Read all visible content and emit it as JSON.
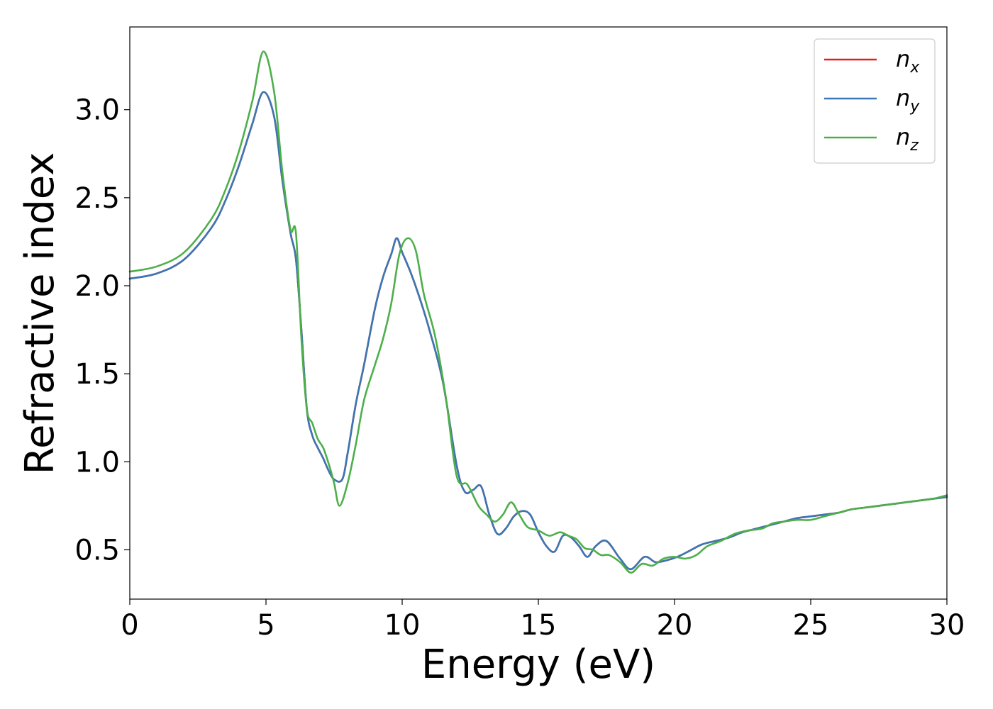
{
  "chart_data": {
    "type": "line",
    "title": "",
    "xlabel": "Energy (eV)",
    "ylabel": "Refractive index",
    "xlim": [
      0,
      30
    ],
    "ylim": [
      0.22,
      3.47
    ],
    "xticks": [
      0,
      5,
      10,
      15,
      20,
      25,
      30
    ],
    "xtick_labels": [
      "0",
      "5",
      "10",
      "15",
      "20",
      "25",
      "30"
    ],
    "yticks": [
      0.5,
      1.0,
      1.5,
      2.0,
      2.5,
      3.0
    ],
    "ytick_labels": [
      "0.5",
      "1.0",
      "1.5",
      "2.0",
      "2.5",
      "3.0"
    ],
    "grid": false,
    "legend_position": "top-right",
    "series": [
      {
        "name": "n_x",
        "label_main": "n",
        "label_sub": "x",
        "color": "#e41a1c",
        "x": [
          0,
          1,
          2,
          3,
          3.5,
          4,
          4.5,
          4.9,
          5.3,
          5.6,
          5.9,
          6.1,
          6.3,
          6.5,
          6.7,
          6.9,
          7.1,
          7.3,
          7.5,
          7.8,
          8.0,
          8.3,
          8.6,
          9.0,
          9.3,
          9.6,
          9.8,
          10.0,
          10.3,
          10.6,
          11.0,
          11.5,
          12.0,
          12.3,
          12.6,
          12.9,
          13.2,
          13.5,
          13.8,
          14.1,
          14.4,
          14.7,
          15.0,
          15.3,
          15.6,
          15.9,
          16.2,
          16.5,
          16.8,
          17.1,
          17.5,
          18.0,
          18.4,
          18.9,
          19.3,
          19.7,
          20.1,
          20.5,
          21.0,
          21.5,
          22.0,
          22.5,
          23.0,
          23.5,
          24.0,
          24.5,
          25.0,
          25.5,
          26.0,
          26.5,
          27.0,
          27.5,
          28.0,
          28.5,
          29.0,
          29.5,
          30.0
        ],
        "y": [
          2.04,
          2.07,
          2.15,
          2.33,
          2.48,
          2.68,
          2.92,
          3.1,
          2.96,
          2.6,
          2.3,
          2.15,
          1.75,
          1.3,
          1.15,
          1.08,
          1.02,
          0.95,
          0.9,
          0.9,
          1.05,
          1.33,
          1.55,
          1.87,
          2.05,
          2.18,
          2.27,
          2.19,
          2.08,
          1.95,
          1.75,
          1.45,
          0.98,
          0.83,
          0.84,
          0.86,
          0.7,
          0.59,
          0.62,
          0.69,
          0.72,
          0.7,
          0.6,
          0.52,
          0.49,
          0.58,
          0.57,
          0.52,
          0.46,
          0.52,
          0.55,
          0.45,
          0.39,
          0.46,
          0.43,
          0.44,
          0.46,
          0.49,
          0.53,
          0.55,
          0.57,
          0.6,
          0.62,
          0.64,
          0.66,
          0.68,
          0.69,
          0.7,
          0.71,
          0.73,
          0.74,
          0.75,
          0.76,
          0.77,
          0.78,
          0.79,
          0.8
        ]
      },
      {
        "name": "n_y",
        "label_main": "n",
        "label_sub": "y",
        "color": "#3a77b4",
        "x": [
          0,
          1,
          2,
          3,
          3.5,
          4,
          4.5,
          4.9,
          5.3,
          5.6,
          5.9,
          6.1,
          6.3,
          6.5,
          6.7,
          6.9,
          7.1,
          7.3,
          7.5,
          7.8,
          8.0,
          8.3,
          8.6,
          9.0,
          9.3,
          9.6,
          9.8,
          10.0,
          10.3,
          10.6,
          11.0,
          11.5,
          12.0,
          12.3,
          12.6,
          12.9,
          13.2,
          13.5,
          13.8,
          14.1,
          14.4,
          14.7,
          15.0,
          15.3,
          15.6,
          15.9,
          16.2,
          16.5,
          16.8,
          17.1,
          17.5,
          18.0,
          18.4,
          18.9,
          19.3,
          19.7,
          20.1,
          20.5,
          21.0,
          21.5,
          22.0,
          22.5,
          23.0,
          23.5,
          24.0,
          24.5,
          25.0,
          25.5,
          26.0,
          26.5,
          27.0,
          27.5,
          28.0,
          28.5,
          29.0,
          29.5,
          30.0
        ],
        "y": [
          2.04,
          2.07,
          2.15,
          2.33,
          2.48,
          2.68,
          2.92,
          3.1,
          2.96,
          2.6,
          2.3,
          2.15,
          1.75,
          1.3,
          1.15,
          1.08,
          1.02,
          0.95,
          0.9,
          0.9,
          1.05,
          1.33,
          1.55,
          1.87,
          2.05,
          2.18,
          2.27,
          2.19,
          2.08,
          1.95,
          1.75,
          1.45,
          0.98,
          0.83,
          0.84,
          0.86,
          0.7,
          0.59,
          0.62,
          0.69,
          0.72,
          0.7,
          0.6,
          0.52,
          0.49,
          0.58,
          0.57,
          0.52,
          0.46,
          0.52,
          0.55,
          0.45,
          0.39,
          0.46,
          0.43,
          0.44,
          0.46,
          0.49,
          0.53,
          0.55,
          0.57,
          0.6,
          0.62,
          0.64,
          0.66,
          0.68,
          0.69,
          0.7,
          0.71,
          0.73,
          0.74,
          0.75,
          0.76,
          0.77,
          0.78,
          0.79,
          0.8
        ]
      },
      {
        "name": "n_z",
        "label_main": "n",
        "label_sub": "z",
        "color": "#4daf4a",
        "x": [
          0,
          1,
          2,
          3,
          3.5,
          4,
          4.5,
          4.9,
          5.3,
          5.6,
          5.9,
          6.1,
          6.3,
          6.5,
          6.7,
          6.9,
          7.1,
          7.3,
          7.5,
          7.7,
          8.0,
          8.3,
          8.6,
          9.0,
          9.3,
          9.6,
          9.9,
          10.2,
          10.5,
          10.8,
          11.2,
          11.6,
          12.0,
          12.4,
          12.8,
          13.1,
          13.4,
          13.7,
          14.0,
          14.3,
          14.6,
          15.0,
          15.4,
          15.8,
          16.1,
          16.4,
          16.7,
          17.0,
          17.3,
          17.6,
          18.0,
          18.4,
          18.8,
          19.2,
          19.6,
          20.0,
          20.4,
          20.8,
          21.2,
          21.7,
          22.2,
          22.7,
          23.2,
          23.6,
          24.0,
          24.5,
          25.0,
          25.5,
          26.0,
          26.5,
          27.0,
          27.5,
          28.0,
          28.5,
          29.0,
          29.5,
          30.0
        ],
        "y": [
          2.08,
          2.11,
          2.19,
          2.38,
          2.54,
          2.76,
          3.05,
          3.33,
          3.1,
          2.65,
          2.32,
          2.3,
          1.7,
          1.3,
          1.22,
          1.13,
          1.08,
          0.99,
          0.88,
          0.75,
          0.88,
          1.1,
          1.35,
          1.55,
          1.7,
          1.9,
          2.18,
          2.27,
          2.2,
          1.95,
          1.72,
          1.37,
          0.92,
          0.87,
          0.75,
          0.7,
          0.66,
          0.7,
          0.77,
          0.7,
          0.63,
          0.61,
          0.58,
          0.6,
          0.58,
          0.56,
          0.51,
          0.5,
          0.47,
          0.47,
          0.43,
          0.37,
          0.42,
          0.41,
          0.45,
          0.46,
          0.45,
          0.47,
          0.52,
          0.55,
          0.59,
          0.61,
          0.62,
          0.65,
          0.66,
          0.67,
          0.67,
          0.69,
          0.71,
          0.73,
          0.74,
          0.75,
          0.76,
          0.77,
          0.78,
          0.79,
          0.81
        ]
      }
    ]
  }
}
